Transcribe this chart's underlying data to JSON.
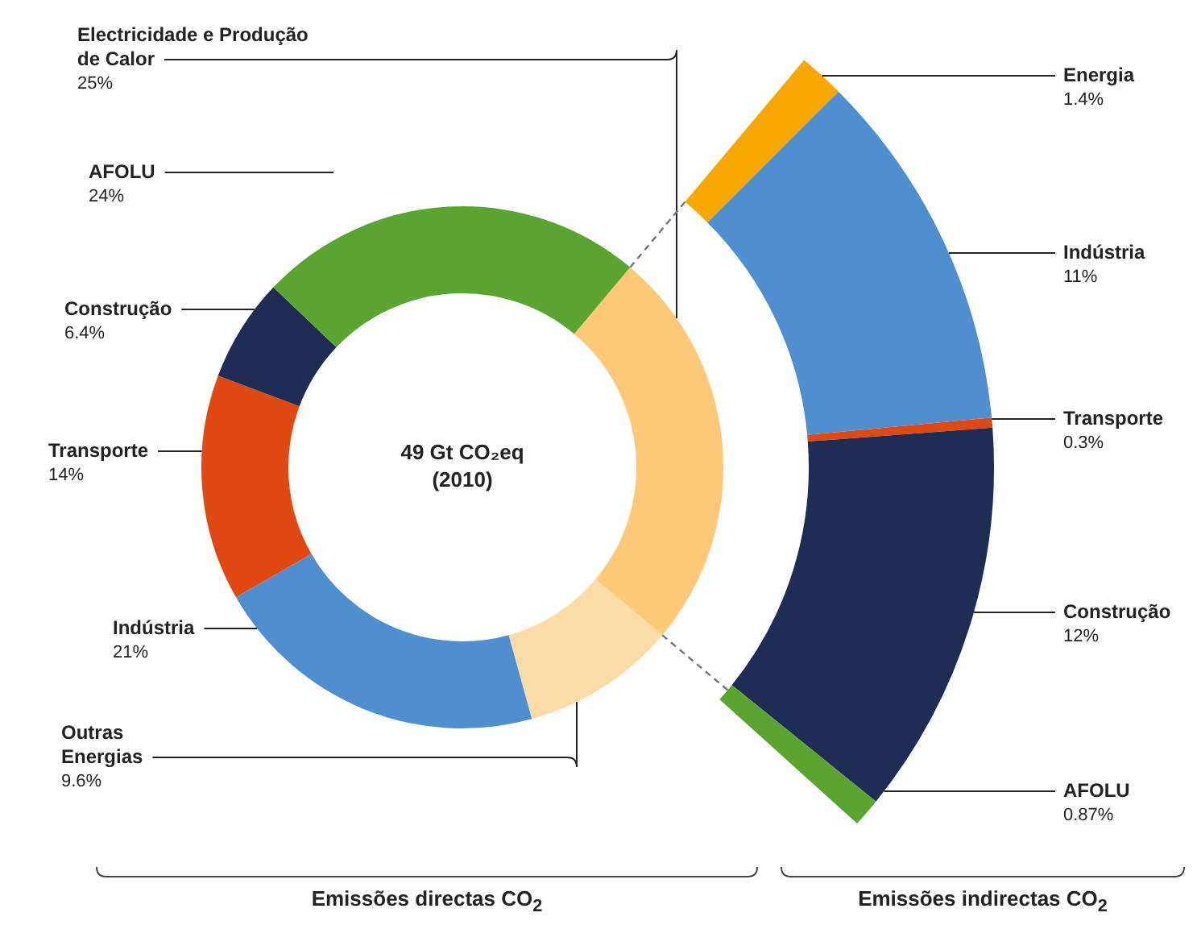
{
  "chart_data": [
    {
      "type": "donut",
      "categories": [
        "Electricidade e Produção de Calor",
        "Outras Energias",
        "Indústria",
        "Transporte",
        "Construção",
        "AFOLU"
      ],
      "values": [
        25,
        9.6,
        21,
        14,
        6.4,
        24
      ],
      "value_labels": [
        "25%",
        "9.6%",
        "21%",
        "14%",
        "6.4%",
        "24%"
      ],
      "colors": [
        "#fdc878",
        "#fddba6",
        "#4f8fcf",
        "#e04a12",
        "#1f2d55",
        "#5aa532"
      ],
      "annotations": [
        "49 Gt CO₂eq",
        "(2010)"
      ],
      "xlabel": "Emissões directas CO$_{2}$"
    },
    {
      "type": "donut",
      "categories": [
        "Energia",
        "Indústria",
        "Transporte",
        "Construção",
        "AFOLU"
      ],
      "values": [
        1.4,
        11,
        0.3,
        12,
        0.87
      ],
      "value_labels": [
        "1.4%",
        "11%",
        "0.3%",
        "12%",
        "0.87%"
      ],
      "colors": [
        "#f6a800",
        "#4f8fcf",
        "#e04a12",
        "#1f2d55",
        "#5aa532"
      ],
      "xlabel": "Emissões indirectas CO$_{2}$"
    }
  ]
}
